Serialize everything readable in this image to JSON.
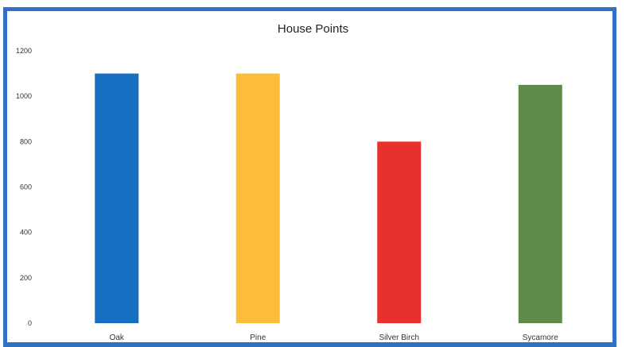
{
  "chart_data": {
    "type": "bar",
    "title": "House Points",
    "xlabel": "",
    "ylabel": "",
    "categories": [
      "Oak",
      "Pine",
      "Silver Birch",
      "Sycamore"
    ],
    "values": [
      1100,
      1100,
      800,
      1050
    ],
    "colors": [
      "#1570C4",
      "#FBBD3A",
      "#E8302E",
      "#5E8A4A"
    ],
    "ylim": [
      0,
      1200
    ],
    "yticks": [
      0,
      200,
      400,
      600,
      800,
      1000,
      1200
    ],
    "grid": false,
    "legend": "none"
  }
}
